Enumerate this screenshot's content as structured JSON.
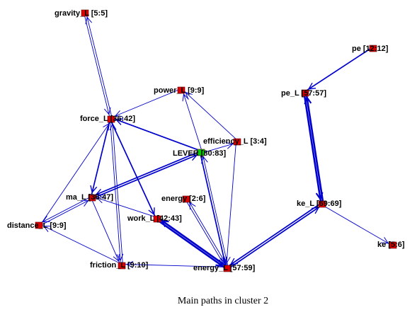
{
  "caption": "Main paths in cluster 2",
  "colors": {
    "edge": "#0000cc",
    "node": "#dd0000",
    "node_highlight": "#00cc00",
    "label": "#000000"
  },
  "nodes": [
    {
      "id": "gravity",
      "label": "gravity_L [5:5]"
    },
    {
      "id": "pe",
      "label": "pe [12:12]"
    },
    {
      "id": "power",
      "label": "power_L [9:9]"
    },
    {
      "id": "pe_L",
      "label": "pe_L [57:57]"
    },
    {
      "id": "force",
      "label": "force_L [36:42]"
    },
    {
      "id": "efficiency",
      "label": "efficiency_L [3:4]"
    },
    {
      "id": "lever",
      "label": "LEVER [80:83]",
      "highlight": true
    },
    {
      "id": "energy26",
      "label": "energy [2:6]"
    },
    {
      "id": "ma",
      "label": "ma_L [36:47]"
    },
    {
      "id": "ke_L",
      "label": "ke_L [69:69]"
    },
    {
      "id": "work",
      "label": "work_L [42:43]"
    },
    {
      "id": "distance",
      "label": "distance_L [9:9]"
    },
    {
      "id": "ke",
      "label": "ke [5:6]"
    },
    {
      "id": "friction",
      "label": "friction_L [9:10]"
    },
    {
      "id": "energyL",
      "label": "energy_L [57:59]"
    }
  ],
  "edges": [
    {
      "from": "force",
      "to": "gravity",
      "weight": 1
    },
    {
      "from": "gravity",
      "to": "force",
      "weight": 1
    },
    {
      "from": "pe",
      "to": "pe_L",
      "weight": 2
    },
    {
      "from": "pe_L",
      "to": "ke_L",
      "weight": 3
    },
    {
      "from": "ke_L",
      "to": "pe_L",
      "weight": 3
    },
    {
      "from": "ke_L",
      "to": "ke",
      "weight": 1
    },
    {
      "from": "energyL",
      "to": "ke_L",
      "weight": 2
    },
    {
      "from": "ke_L",
      "to": "energyL",
      "weight": 2
    },
    {
      "from": "power",
      "to": "force",
      "weight": 1
    },
    {
      "from": "lever",
      "to": "power",
      "weight": 1
    },
    {
      "from": "lever",
      "to": "force",
      "weight": 2
    },
    {
      "from": "lever",
      "to": "efficiency",
      "weight": 1
    },
    {
      "from": "efficiency",
      "to": "power",
      "weight": 1
    },
    {
      "from": "efficiency",
      "to": "energyL",
      "weight": 1
    },
    {
      "from": "lever",
      "to": "ma",
      "weight": 2
    },
    {
      "from": "ma",
      "to": "lever",
      "weight": 2
    },
    {
      "from": "lever",
      "to": "energyL",
      "weight": 2
    },
    {
      "from": "energyL",
      "to": "lever",
      "weight": 1
    },
    {
      "from": "force",
      "to": "ma",
      "weight": 2
    },
    {
      "from": "force",
      "to": "work",
      "weight": 2
    },
    {
      "from": "force",
      "to": "friction",
      "weight": 1
    },
    {
      "from": "friction",
      "to": "force",
      "weight": 1
    },
    {
      "from": "distance",
      "to": "force",
      "weight": 1
    },
    {
      "from": "ma",
      "to": "distance",
      "weight": 1
    },
    {
      "from": "distance",
      "to": "ma",
      "weight": 1
    },
    {
      "from": "ma",
      "to": "friction",
      "weight": 1
    },
    {
      "from": "work",
      "to": "ma",
      "weight": 1
    },
    {
      "from": "work",
      "to": "energyL",
      "weight": 3
    },
    {
      "from": "energyL",
      "to": "work",
      "weight": 3
    },
    {
      "from": "energy26",
      "to": "energyL",
      "weight": 1
    },
    {
      "from": "energyL",
      "to": "energy26",
      "weight": 1
    },
    {
      "from": "friction",
      "to": "distance",
      "weight": 1
    },
    {
      "from": "energyL",
      "to": "friction",
      "weight": 1
    }
  ]
}
